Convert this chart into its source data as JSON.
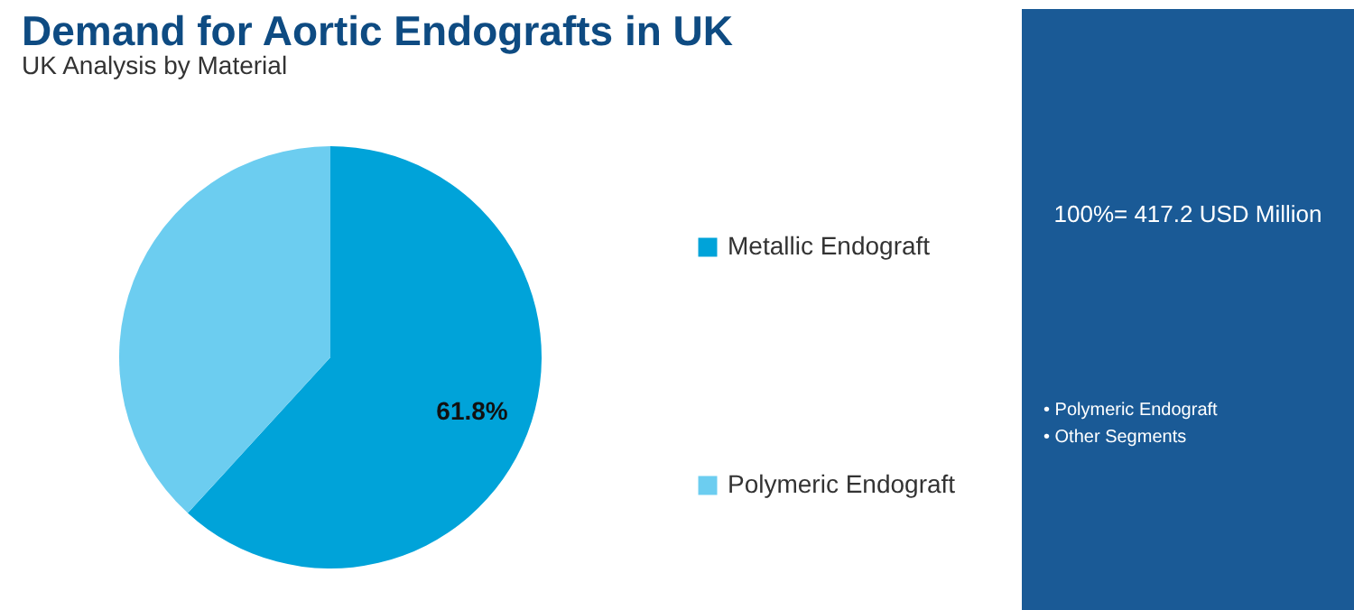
{
  "chart_data": {
    "type": "pie",
    "title": "Demand for Aortic Endografts in UK",
    "subtitle": "UK Analysis by Material",
    "categories": [
      "Metallic Endograft",
      "Polymeric Endograft"
    ],
    "values": [
      61.8,
      38.2
    ],
    "colors": [
      "#00a3d9",
      "#6ccdf0"
    ],
    "value_labels": [
      "61.8%",
      null
    ],
    "legend": "right",
    "annotations": [
      "100%= 417.2 USD Million",
      "• Polymeric Endograft",
      "• Other Segments"
    ]
  }
}
